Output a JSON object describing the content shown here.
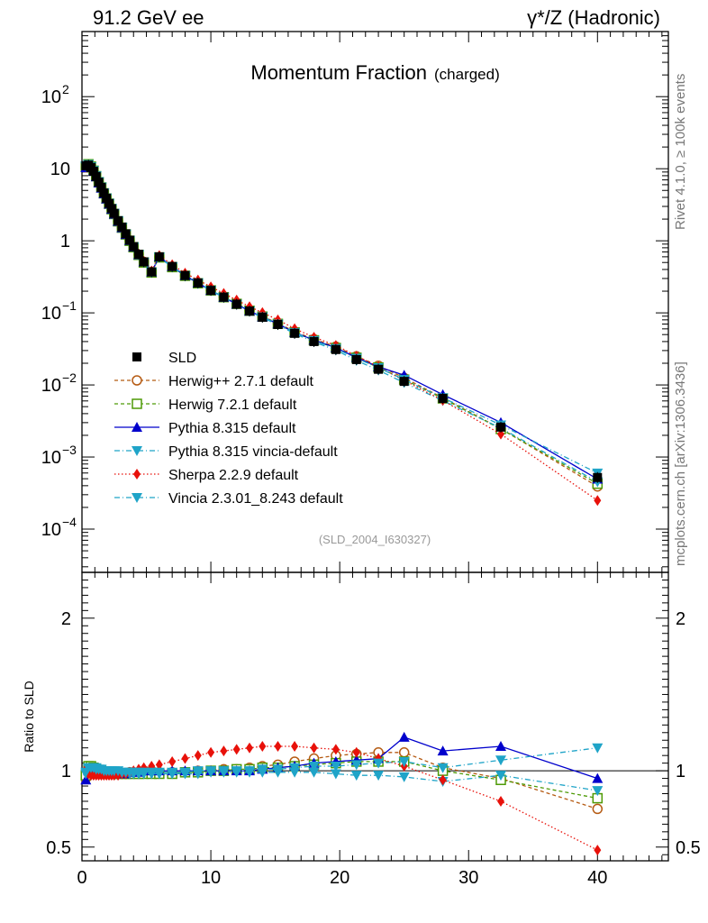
{
  "header": {
    "left": "91.2 GeV ee",
    "right": "γ*/Z (Hadronic)",
    "title_main": "Momentum Fraction",
    "title_sub": "(charged)",
    "side_top": "Rivet 4.1.0, ≥ 100k events",
    "side_bottom": "mcplots.cern.ch [arXiv:1306.3436]",
    "analysis_ref": "(SLD_2004_I630327)"
  },
  "chart_data": {
    "type": "line",
    "x_range": [
      0,
      45.5
    ],
    "y_log_range": [
      2.51e-05,
      800
    ],
    "ratio_range": [
      0.41,
      2.3
    ],
    "ylabel_ratio": "Ratio to SLD",
    "x_ticks": [
      "0",
      "10",
      "20",
      "30",
      "40"
    ],
    "x_tick_values": [
      0,
      10,
      20,
      30,
      40
    ],
    "y_ticks": [
      {
        "value": 100,
        "base": "10",
        "exp": "2"
      },
      {
        "value": 10,
        "base": "10",
        "exp": ""
      },
      {
        "value": 1,
        "base": "1",
        "exp": ""
      },
      {
        "value": 0.1,
        "base": "10",
        "exp": "−1"
      },
      {
        "value": 0.01,
        "base": "10",
        "exp": "−2"
      },
      {
        "value": 0.001,
        "base": "10",
        "exp": "−3"
      },
      {
        "value": 0.0001,
        "base": "10",
        "exp": "−4"
      }
    ],
    "ratio_ticks": [
      {
        "value": 0.5,
        "label": "0.5"
      },
      {
        "value": 1,
        "label": "1"
      },
      {
        "value": 2,
        "label": "2"
      }
    ],
    "data_x": [
      0.3,
      0.5,
      0.7,
      0.9,
      1.1,
      1.3,
      1.5,
      1.7,
      1.9,
      2.1,
      2.3,
      2.5,
      2.8,
      3.1,
      3.4,
      3.7,
      4.0,
      4.4,
      4.8,
      5.4,
      6.0,
      7.0,
      8.0,
      9.0,
      10.0,
      11.0,
      12.0,
      13.0,
      14.0,
      15.2,
      16.5,
      18.0,
      19.7,
      21.3,
      23.0,
      25.0,
      28.0,
      32.5,
      40.0
    ],
    "data_y": [
      11.0,
      11.2,
      10.4,
      9.2,
      7.8,
      6.5,
      5.5,
      4.6,
      3.9,
      3.3,
      2.8,
      2.4,
      1.9,
      1.55,
      1.25,
      1.02,
      0.83,
      0.65,
      0.51,
      0.37,
      0.6,
      0.44,
      0.33,
      0.26,
      0.205,
      0.165,
      0.132,
      0.106,
      0.087,
      0.069,
      0.052,
      0.04,
      0.031,
      0.0225,
      0.0165,
      0.0112,
      0.0065,
      0.0026,
      0.00052
    ],
    "series": [
      {
        "name": "SLD",
        "color": "#000000",
        "marker": "square-filled",
        "dash": "",
        "ratio": []
      },
      {
        "name": "Herwig++ 2.7.1 default",
        "color": "#b55a12",
        "marker": "circle-open",
        "dash": "4,3",
        "ratio": [
          0.95,
          1.02,
          1.02,
          1.0,
          0.99,
          0.99,
          0.98,
          0.98,
          0.98,
          0.98,
          0.98,
          0.98,
          0.98,
          0.98,
          0.98,
          0.99,
          0.99,
          0.99,
          1.0,
          1.0,
          0.99,
          0.99,
          0.99,
          1.0,
          1.0,
          1.01,
          1.01,
          1.02,
          1.03,
          1.04,
          1.06,
          1.08,
          1.1,
          1.11,
          1.12,
          1.12,
          1.02,
          0.95,
          0.75
        ]
      },
      {
        "name": "Herwig 7.2.1 default",
        "color": "#4e9a06",
        "marker": "square-open",
        "dash": "4,3",
        "ratio": [
          0.97,
          1.03,
          1.03,
          1.02,
          1.01,
          1.0,
          1.0,
          0.99,
          0.99,
          0.99,
          0.98,
          0.98,
          0.98,
          0.98,
          0.98,
          0.98,
          0.98,
          0.98,
          0.98,
          0.98,
          0.98,
          0.98,
          0.99,
          0.99,
          1.0,
          1.0,
          1.01,
          1.01,
          1.02,
          1.02,
          1.03,
          1.04,
          1.05,
          1.06,
          1.06,
          1.06,
          1.0,
          0.94,
          0.82
        ]
      },
      {
        "name": "Pythia 8.315 default",
        "color": "#0000cc",
        "marker": "triangle-up",
        "dash": "",
        "ratio": [
          0.94,
          1.0,
          1.01,
          1.0,
          0.99,
          0.98,
          0.98,
          0.98,
          0.98,
          0.98,
          0.98,
          0.98,
          0.98,
          0.98,
          0.98,
          0.99,
          0.99,
          0.99,
          1.0,
          1.0,
          1.0,
          1.0,
          1.0,
          1.0,
          1.0,
          1.0,
          1.0,
          1.0,
          1.01,
          1.02,
          1.03,
          1.05,
          1.06,
          1.07,
          1.08,
          1.22,
          1.13,
          1.16,
          0.95
        ]
      },
      {
        "name": "Pythia 8.315 vincia-default",
        "color": "#1fa4c8",
        "marker": "triangle-down",
        "dash": "6,3,1,3",
        "ratio": [
          0.98,
          1.01,
          1.02,
          1.02,
          1.02,
          1.01,
          1.0,
          1.0,
          1.0,
          0.99,
          0.99,
          0.99,
          0.99,
          0.98,
          0.98,
          0.98,
          0.98,
          0.98,
          0.98,
          0.98,
          0.98,
          0.98,
          0.98,
          0.98,
          0.99,
          0.99,
          0.99,
          0.99,
          0.99,
          0.99,
          0.99,
          0.99,
          0.98,
          0.97,
          0.97,
          0.96,
          0.93,
          0.97,
          0.87
        ]
      },
      {
        "name": "Sherpa 2.2.9 default",
        "color": "#e8110a",
        "marker": "diamond",
        "dash": "1.5,2.5",
        "ratio": [
          1.01,
          0.98,
          0.97,
          0.97,
          0.97,
          0.97,
          0.97,
          0.97,
          0.97,
          0.97,
          0.97,
          0.97,
          0.97,
          0.98,
          0.98,
          0.99,
          1.0,
          1.01,
          1.02,
          1.03,
          1.04,
          1.06,
          1.08,
          1.1,
          1.12,
          1.13,
          1.14,
          1.15,
          1.16,
          1.16,
          1.16,
          1.15,
          1.14,
          1.12,
          1.08,
          1.03,
          0.94,
          0.8,
          0.48
        ]
      },
      {
        "name": "Vincia 2.3.01_8.243 default",
        "color": "#1fa4c8",
        "marker": "triangle-down",
        "dash": "6,3,1,3",
        "ratio": [
          0.99,
          1.02,
          1.02,
          1.02,
          1.01,
          1.01,
          1.01,
          1.0,
          1.0,
          1.0,
          1.0,
          1.0,
          1.0,
          0.99,
          0.99,
          0.99,
          0.99,
          0.99,
          0.99,
          0.99,
          0.99,
          0.99,
          0.99,
          1.0,
          1.0,
          1.0,
          1.0,
          1.0,
          1.01,
          1.01,
          1.02,
          1.03,
          1.03,
          1.04,
          1.05,
          1.06,
          1.02,
          1.07,
          1.15
        ]
      }
    ]
  }
}
